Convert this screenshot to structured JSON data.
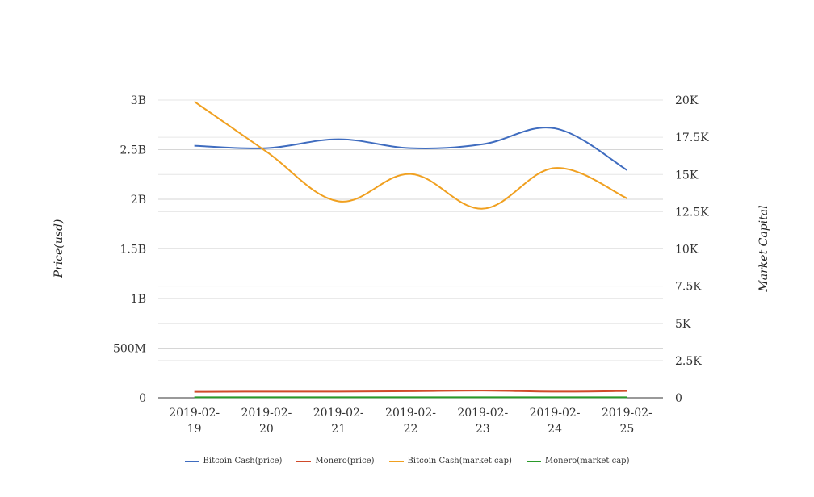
{
  "chart_data": {
    "type": "line",
    "title": "",
    "categories": [
      "2019-02-19",
      "2019-02-20",
      "2019-02-21",
      "2019-02-22",
      "2019-02-23",
      "2019-02-24",
      "2019-02-25"
    ],
    "category_lines": [
      [
        "2019-02-",
        "19"
      ],
      [
        "2019-02-",
        "20"
      ],
      [
        "2019-02-",
        "21"
      ],
      [
        "2019-02-",
        "22"
      ],
      [
        "2019-02-",
        "23"
      ],
      [
        "2019-02-",
        "24"
      ],
      [
        "2019-02-",
        "25"
      ]
    ],
    "y_left": {
      "label": "Price(usd)",
      "lim": [
        0,
        3000000000
      ],
      "ticks": [
        0,
        500000000,
        1000000000,
        1500000000,
        2000000000,
        2500000000,
        3000000000
      ],
      "tick_labels": [
        "0",
        "500M",
        "1B",
        "1.5B",
        "2B",
        "2.5B",
        "3B"
      ]
    },
    "y_right": {
      "label": "Market Capital",
      "lim": [
        0,
        20000
      ],
      "ticks": [
        0,
        2500,
        5000,
        7500,
        10000,
        12500,
        15000,
        17500,
        20000
      ],
      "tick_labels": [
        "0",
        "2.5K",
        "5K",
        "7.5K",
        "10K",
        "12.5K",
        "15K",
        "17.5K",
        "20K"
      ]
    },
    "grid": true,
    "legend_position": "bottom",
    "series": [
      {
        "name": "Bitcoin Cash(price)",
        "axis": "left",
        "color": "#3f6cbf",
        "values": [
          2540000000,
          2515000000,
          2605000000,
          2515000000,
          2555000000,
          2715000000,
          2295000000
        ]
      },
      {
        "name": "Monero(price)",
        "axis": "left",
        "color": "#d04a2a",
        "values": [
          60000000,
          62000000,
          62000000,
          66000000,
          72000000,
          62000000,
          68000000
        ]
      },
      {
        "name": "Bitcoin Cash(market cap)",
        "axis": "left",
        "color": "#f0a020",
        "values": [
          2985000000,
          2480000000,
          1980000000,
          2255000000,
          1905000000,
          2315000000,
          2010000000
        ]
      },
      {
        "name": "Monero(market cap)",
        "axis": "left",
        "color": "#2a9a2a",
        "values": [
          5000000,
          5000000,
          5000000,
          5000000,
          5000000,
          5000000,
          5000000
        ]
      }
    ]
  }
}
